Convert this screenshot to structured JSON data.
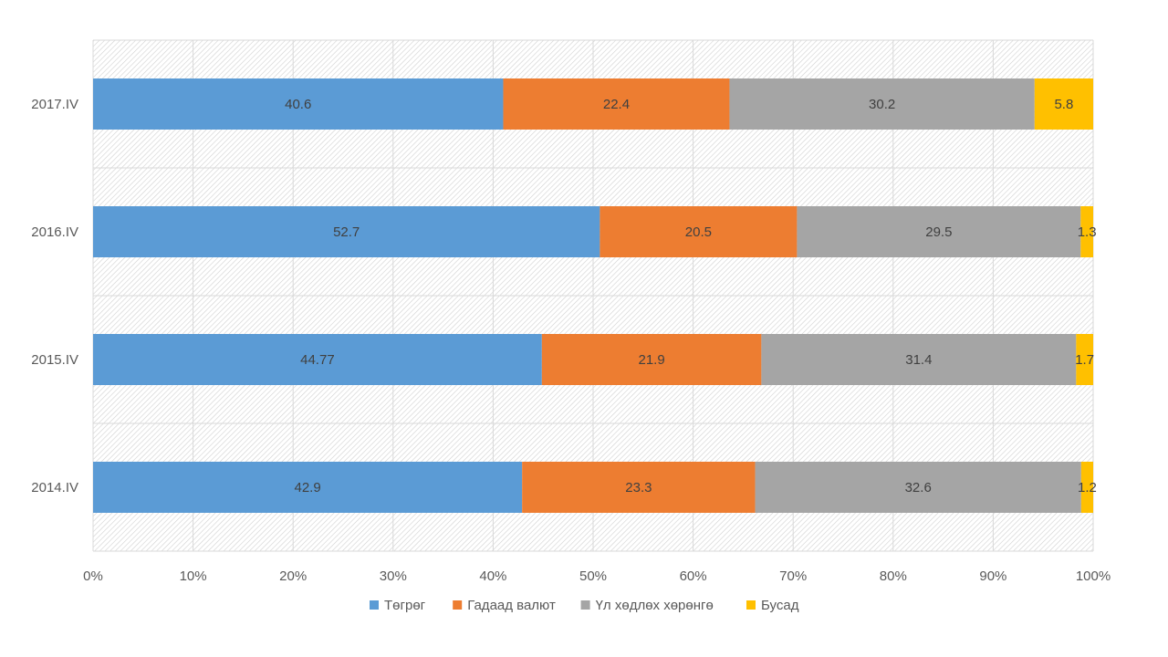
{
  "chart_data": {
    "type": "bar",
    "orientation": "horizontal",
    "stacked": "percent",
    "categories": [
      "2017.IV",
      "2016.IV",
      "2015.IV",
      "2014.IV"
    ],
    "series": [
      {
        "name": "Төгрөг",
        "color": "#5B9BD5",
        "values": [
          40.6,
          52.7,
          44.77,
          42.9
        ],
        "labels": [
          "40.6",
          "52.7",
          "44.77",
          "42.9"
        ]
      },
      {
        "name": "Гадаад валют",
        "color": "#ED7D31",
        "values": [
          22.4,
          20.5,
          21.9,
          23.3
        ],
        "labels": [
          "22.4",
          "20.5",
          "21.9",
          "23.3"
        ]
      },
      {
        "name": "Үл хөдлөх хөрөнгө",
        "color": "#A5A5A5",
        "values": [
          30.2,
          29.5,
          31.4,
          32.6
        ],
        "labels": [
          "30.2",
          "29.5",
          "31.4",
          "32.6"
        ]
      },
      {
        "name": "Бусад",
        "color": "#FFC000",
        "values": [
          5.8,
          1.3,
          1.7,
          1.2
        ],
        "labels": [
          "5.8",
          "1.3",
          "1.7",
          "1.2"
        ]
      }
    ],
    "x_ticks": [
      "0%",
      "10%",
      "20%",
      "30%",
      "40%",
      "50%",
      "60%",
      "70%",
      "80%",
      "90%",
      "100%"
    ],
    "xlim": [
      0,
      100
    ],
    "grid": "vertical",
    "legend": "bottom-center"
  }
}
